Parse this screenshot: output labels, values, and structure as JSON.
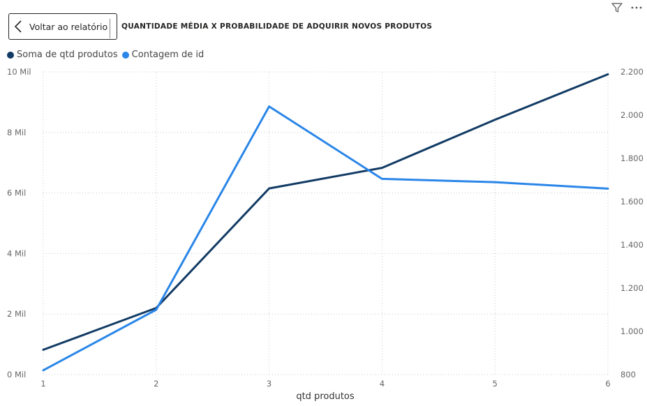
{
  "header": {
    "back_label": "Voltar ao relatório",
    "title": "QUANTIDADE MÉDIA X PROBABILIDADE DE ADQUIRIR NOVOS PRODUTOS",
    "icons": [
      "filter-icon",
      "more-options-icon"
    ]
  },
  "chart_data": {
    "type": "line",
    "x": [
      1,
      2,
      3,
      4,
      5,
      6
    ],
    "xlabel": "qtd produtos",
    "x_ticks": [
      "1",
      "2",
      "3",
      "4",
      "5",
      "6"
    ],
    "series": [
      {
        "name": "Soma de qtd produtos",
        "axis": "left",
        "color": "#123B64",
        "values": [
          820,
          2200,
          6150,
          6830,
          8420,
          9920
        ]
      },
      {
        "name": "Contagem de id",
        "axis": "right",
        "color": "#2A86E8",
        "values": [
          820,
          1100,
          2040,
          1705,
          1690,
          1660
        ]
      }
    ],
    "y_left": {
      "range": [
        0,
        10000
      ],
      "ticks": [
        0,
        2000,
        4000,
        6000,
        8000,
        10000
      ],
      "tick_labels": [
        "0 Mil",
        "2 Mil",
        "4 Mil",
        "6 Mil",
        "8 Mil",
        "10 Mil"
      ]
    },
    "y_right": {
      "range": [
        800,
        2200
      ],
      "ticks": [
        800,
        1000,
        1200,
        1400,
        1600,
        1800,
        2000,
        2200
      ],
      "tick_labels": [
        "800",
        "1.000",
        "1.200",
        "1.400",
        "1.600",
        "1.800",
        "2.000",
        "2.200"
      ]
    },
    "grid": true,
    "legend_position": "top-left"
  }
}
